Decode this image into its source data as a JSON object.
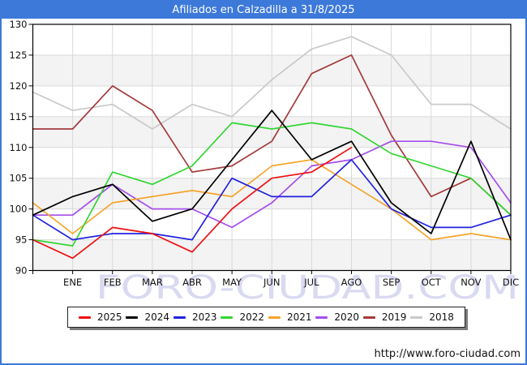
{
  "header": {
    "title": "Afiliados en Calzadilla a 31/8/2025",
    "background_color": "#3c79d9"
  },
  "watermark": "FORO-CIUDAD.COM",
  "footer": {
    "url": "http://www.foro-ciudad.com"
  },
  "chart_data": {
    "type": "line",
    "title": "Afiliados en Calzadilla a 31/8/2025",
    "x_categories": [
      "ENE",
      "FEB",
      "MAR",
      "ABR",
      "MAY",
      "JUN",
      "JUL",
      "AGO",
      "SEP",
      "OCT",
      "NOV",
      "DIC"
    ],
    "ylim": [
      90,
      130
    ],
    "yticks": [
      90,
      95,
      100,
      105,
      110,
      115,
      120,
      125,
      130
    ],
    "grid": true,
    "band_fill": "#f3f3f3",
    "gridline_color": "#d9d9d9",
    "legend_position": "bottom",
    "note": "each series starts at the left axis with its previous-December value; 2025 has data only through AGO",
    "series": [
      {
        "name": "2025",
        "color": "#ee1111",
        "start": 95,
        "values": [
          92,
          97,
          96,
          93,
          100,
          105,
          106,
          110
        ]
      },
      {
        "name": "2024",
        "color": "#000000",
        "start": 99,
        "values": [
          102,
          104,
          98,
          100,
          108,
          116,
          108,
          111,
          101,
          96,
          111,
          95
        ]
      },
      {
        "name": "2023",
        "color": "#2222dd",
        "start": 99,
        "values": [
          95,
          96,
          96,
          95,
          105,
          102,
          102,
          108,
          100,
          97,
          97,
          99
        ]
      },
      {
        "name": "2022",
        "color": "#33d633",
        "start": 95,
        "values": [
          94,
          106,
          104,
          107,
          114,
          113,
          114,
          113,
          109,
          107,
          105,
          99
        ]
      },
      {
        "name": "2021",
        "color": "#f5a42c",
        "start": 101,
        "values": [
          96,
          101,
          102,
          103,
          102,
          107,
          108,
          104,
          100,
          95,
          96,
          95
        ]
      },
      {
        "name": "2020",
        "color": "#a64deb",
        "start": 99,
        "values": [
          99,
          104,
          100,
          100,
          97,
          101,
          107,
          108,
          111,
          111,
          110,
          101
        ]
      },
      {
        "name": "2019",
        "color": "#a33b3b",
        "start": 113,
        "values": [
          113,
          120,
          116,
          106,
          107,
          111,
          122,
          125,
          112,
          102,
          105,
          99
        ]
      },
      {
        "name": "2018",
        "color": "#c9c9c9",
        "start": 119,
        "values": [
          116,
          117,
          113,
          117,
          115,
          121,
          126,
          128,
          125,
          117,
          117,
          113
        ]
      }
    ]
  }
}
